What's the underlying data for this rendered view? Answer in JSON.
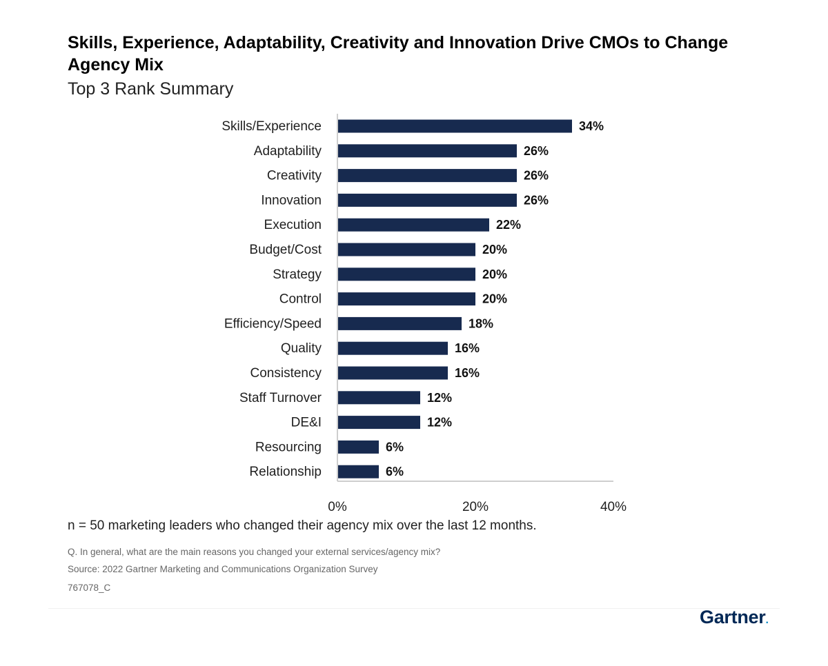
{
  "title": "Skills, Experience, Adaptability, Creativity and Innovation Drive CMOs to Change Agency Mix",
  "subtitle": "Top 3 Rank Summary",
  "chart_data": {
    "type": "bar",
    "orientation": "horizontal",
    "categories": [
      "Skills/Experience",
      "Adaptability",
      "Creativity",
      "Innovation",
      "Execution",
      "Budget/Cost",
      "Strategy",
      "Control",
      "Efficiency/Speed",
      "Quality",
      "Consistency",
      "Staff Turnover",
      "DE&I",
      "Resourcing",
      "Relationship"
    ],
    "values": [
      34,
      26,
      26,
      26,
      22,
      20,
      20,
      20,
      18,
      16,
      16,
      12,
      12,
      6,
      6
    ],
    "data_labels": [
      "34%",
      "26%",
      "26%",
      "26%",
      "22%",
      "20%",
      "20%",
      "20%",
      "18%",
      "16%",
      "16%",
      "12%",
      "12%",
      "6%",
      "6%"
    ],
    "xlim": [
      0,
      40
    ],
    "x_ticks": [
      0,
      20,
      40
    ],
    "x_tick_labels": [
      "0%",
      "20%",
      "40%"
    ],
    "bar_color": "#172a4f",
    "grid": false,
    "xlabel": "",
    "ylabel": ""
  },
  "footer": {
    "sample_note": "n = 50 marketing leaders who changed their agency mix over the last 12 months.",
    "question": "Q. In general, what are the main reasons you changed your external services/agency mix?",
    "source": "Source: 2022 Gartner Marketing and Communications Organization Survey",
    "code": "767078_C",
    "brand": "Gartner",
    "brand_dot": "."
  }
}
